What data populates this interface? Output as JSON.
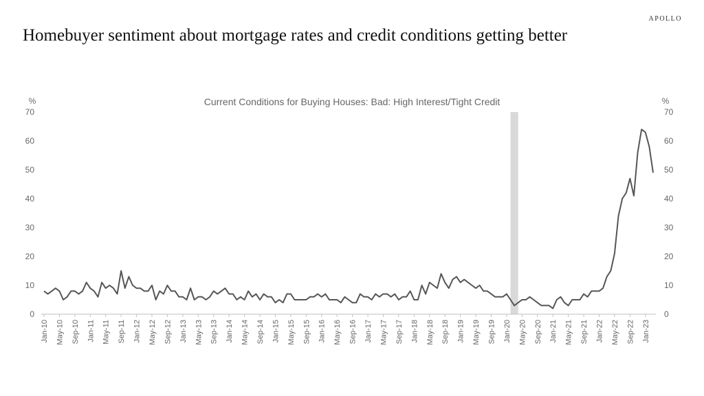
{
  "brand": "APOLLO",
  "headline": "Homebuyer sentiment about mortgage rates and credit conditions getting better",
  "chart_data": {
    "type": "line",
    "title": "Current Conditions for Buying Houses: Bad: High Interest/Tight Credit",
    "ylabel_left": "%",
    "ylabel_right": "%",
    "ylim": [
      0,
      70
    ],
    "yticks": [
      0,
      10,
      20,
      30,
      40,
      50,
      60,
      70
    ],
    "xtick_labels": [
      "Jan-10",
      "May-10",
      "Sep-10",
      "Jan-11",
      "May-11",
      "Sep-11",
      "Jan-12",
      "May-12",
      "Sep-12",
      "Jan-13",
      "May-13",
      "Sep-13",
      "Jan-14",
      "May-14",
      "Sep-14",
      "Jan-15",
      "May-15",
      "Sep-15",
      "Jan-16",
      "May-16",
      "Sep-16",
      "Jan-17",
      "May-17",
      "Sep-17",
      "Jan-18",
      "May-18",
      "Sep-18",
      "Jan-19",
      "May-19",
      "Sep-19",
      "Jan-20",
      "May-20",
      "Sep-20",
      "Jan-21",
      "May-21",
      "Sep-21",
      "Jan-22",
      "May-22",
      "Sep-22",
      "Jan-23"
    ],
    "shaded_period": {
      "start": "Feb-20",
      "end": "Apr-20",
      "color": "#d9d9d9"
    },
    "grid": false,
    "line_color": "#555555",
    "series": [
      {
        "name": "",
        "x_start": "Jan-10",
        "frequency": "monthly",
        "values": [
          8,
          7,
          8,
          9,
          8,
          5,
          6,
          8,
          8,
          7,
          8,
          11,
          9,
          8,
          6,
          11,
          9,
          10,
          9,
          7,
          15,
          9,
          13,
          10,
          9,
          9,
          8,
          8,
          10,
          5,
          8,
          7,
          10,
          8,
          8,
          6,
          6,
          5,
          9,
          5,
          6,
          6,
          5,
          6,
          8,
          7,
          8,
          9,
          7,
          7,
          5,
          6,
          5,
          8,
          6,
          7,
          5,
          7,
          6,
          6,
          4,
          5,
          4,
          7,
          7,
          5,
          5,
          5,
          5,
          6,
          6,
          7,
          6,
          7,
          5,
          5,
          5,
          4,
          6,
          5,
          4,
          4,
          7,
          6,
          6,
          5,
          7,
          6,
          7,
          7,
          6,
          7,
          5,
          6,
          6,
          8,
          5,
          5,
          10,
          7,
          11,
          10,
          9,
          14,
          11,
          9,
          12,
          13,
          11,
          12,
          11,
          10,
          9,
          10,
          8,
          8,
          7,
          6,
          6,
          6,
          7,
          5,
          3,
          4,
          5,
          5,
          6,
          5,
          4,
          3,
          3,
          3,
          2,
          5,
          6,
          4,
          3,
          5,
          5,
          5,
          7,
          6,
          8,
          8,
          8,
          9,
          13,
          15,
          21,
          34,
          40,
          42,
          47,
          41,
          56,
          64,
          63,
          58,
          49
        ]
      }
    ]
  }
}
